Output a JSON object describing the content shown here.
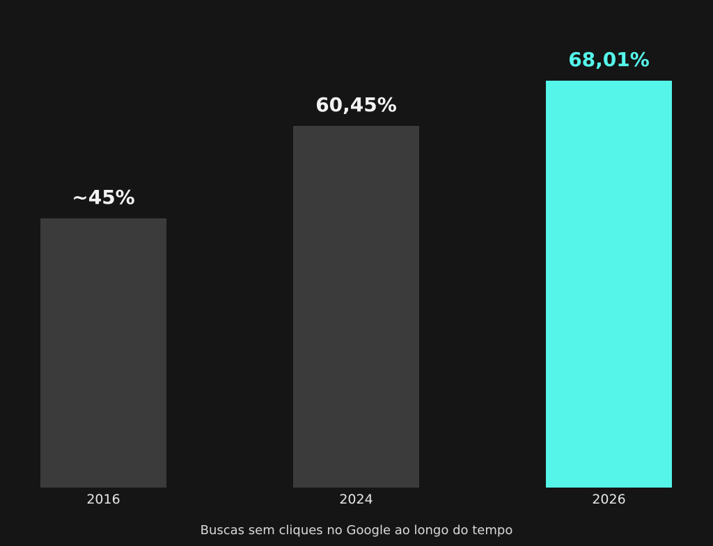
{
  "chart_data": {
    "type": "bar",
    "categories": [
      "2016",
      "2024",
      "2026"
    ],
    "values": [
      45,
      60.45,
      68.01
    ],
    "value_labels": [
      "~45%",
      "60,45%",
      "68,01%"
    ],
    "title": "",
    "xlabel": "Buscas sem cliques no Google ao longo do tempo",
    "ylabel": "",
    "ylim": [
      0,
      68.01
    ],
    "grid": false,
    "legend": "none",
    "colors": {
      "background": "#151515",
      "bar_default": "#3b3b3b",
      "bar_highlight": "#55f5ea",
      "label_default": "#f2f2f2",
      "label_highlight": "#55f5ea",
      "tick_text": "#e6e6e6",
      "caption_text": "#d9d9d9"
    },
    "highlight_category": "2026"
  }
}
